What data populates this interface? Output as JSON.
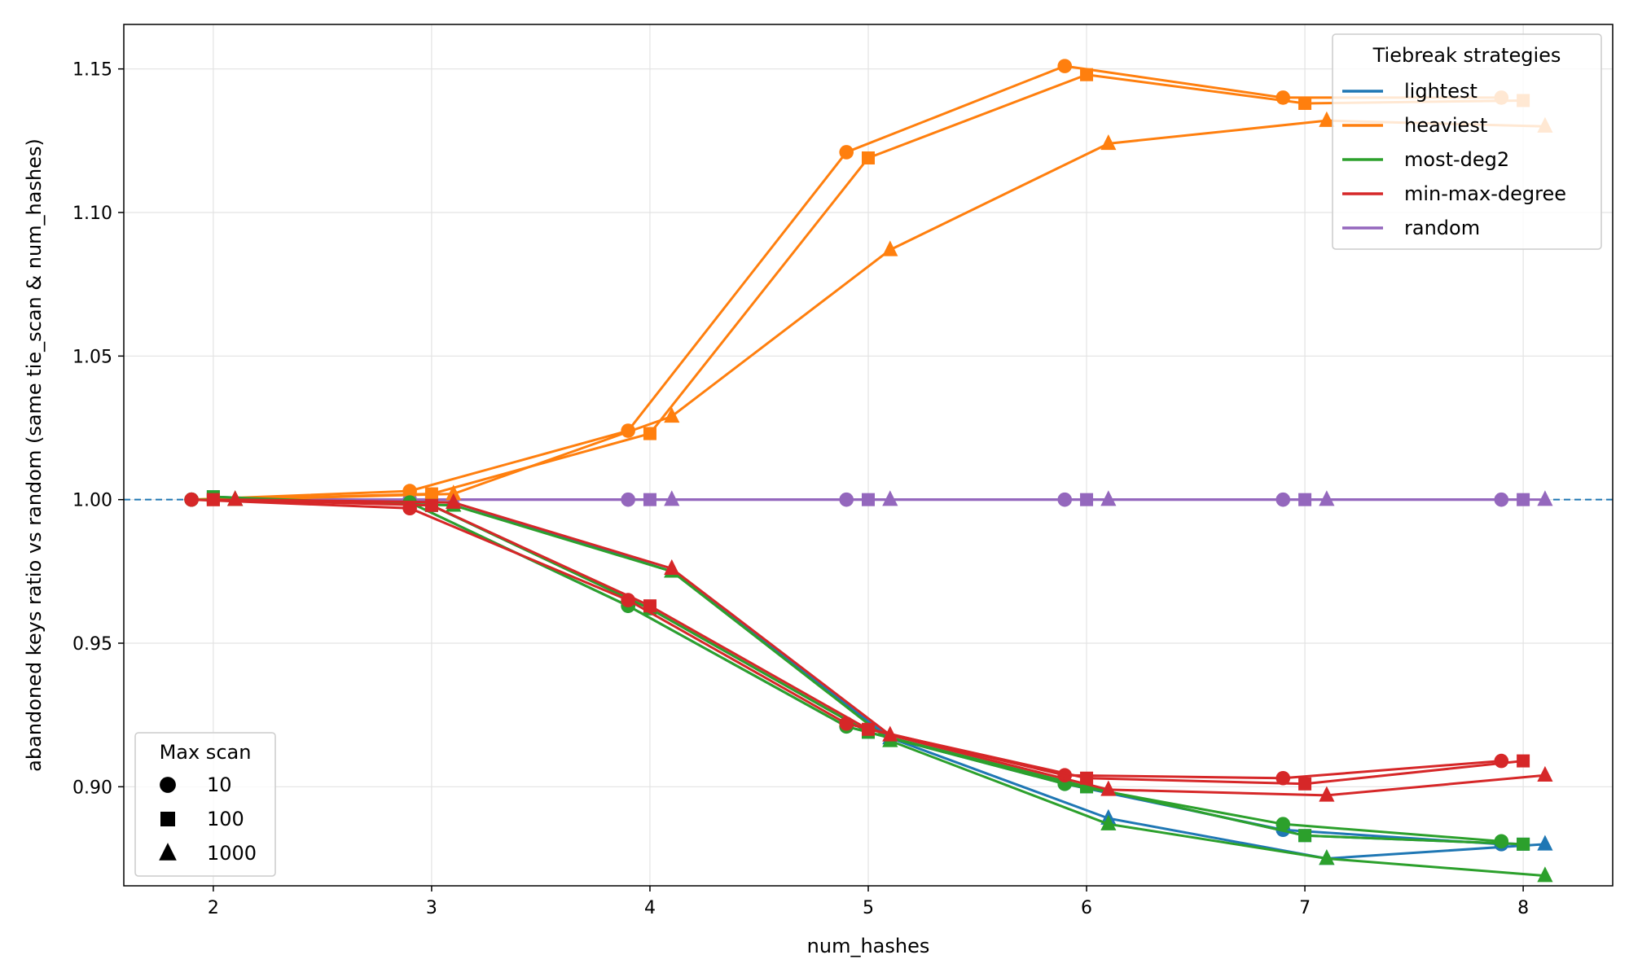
{
  "chart_data": {
    "type": "line",
    "title": "",
    "xlabel": "num_hashes",
    "ylabel": "abandoned keys ratio vs random (same tie_scan & num_hashes)",
    "xlim": [
      1.59,
      8.41
    ],
    "ylim": [
      0.8655,
      1.1655
    ],
    "x_ticks": [
      2,
      3,
      4,
      5,
      6,
      7,
      8
    ],
    "y_ticks": [
      0.9,
      0.95,
      1.0,
      1.05,
      1.1,
      1.15
    ],
    "y_tick_labels": [
      "0.90",
      "0.95",
      "1.00",
      "1.05",
      "1.10",
      "1.15"
    ],
    "grid": true,
    "reference_line": {
      "y": 1.0,
      "style": "dashed",
      "color": "#1f77b4"
    },
    "x": [
      2,
      3,
      4,
      5,
      6,
      7,
      8
    ],
    "max_scan_offsets": {
      "10": -0.1,
      "100": 0.0,
      "1000": 0.1
    },
    "strategy_legend": {
      "title": "Tiebreak strategies",
      "placement": "top-right",
      "entries": [
        {
          "label": "lightest",
          "color": "#1f77b4"
        },
        {
          "label": "heaviest",
          "color": "#ff7f0e"
        },
        {
          "label": "most-deg2",
          "color": "#2ca02c"
        },
        {
          "label": "min-max-degree",
          "color": "#d62728"
        },
        {
          "label": "random",
          "color": "#9467bd"
        }
      ]
    },
    "scan_legend": {
      "title": "Max scan",
      "placement": "bottom-left",
      "entries": [
        {
          "label": "10",
          "marker": "circle"
        },
        {
          "label": "100",
          "marker": "square"
        },
        {
          "label": "1000",
          "marker": "triangle"
        }
      ]
    },
    "series": [
      {
        "strategy": "lightest",
        "max_scan": "10",
        "color": "#1f77b4",
        "marker": "circle",
        "values": [
          1.0,
          0.999,
          0.963,
          0.921,
          0.901,
          0.885,
          0.88
        ]
      },
      {
        "strategy": "lightest",
        "max_scan": "100",
        "color": "#1f77b4",
        "marker": "square",
        "values": [
          1.001,
          0.998,
          0.962,
          0.919,
          0.9,
          0.883,
          0.88
        ]
      },
      {
        "strategy": "lightest",
        "max_scan": "1000",
        "color": "#1f77b4",
        "marker": "triangle",
        "values": [
          1.0,
          0.999,
          0.975,
          0.917,
          0.889,
          0.875,
          0.88
        ]
      },
      {
        "strategy": "random",
        "max_scan": "10",
        "color": "#9467bd",
        "marker": "circle",
        "values": [
          1.0,
          1.0,
          1.0,
          1.0,
          1.0,
          1.0,
          1.0
        ]
      },
      {
        "strategy": "random",
        "max_scan": "100",
        "color": "#9467bd",
        "marker": "square",
        "values": [
          1.0,
          1.0,
          1.0,
          1.0,
          1.0,
          1.0,
          1.0
        ]
      },
      {
        "strategy": "random",
        "max_scan": "1000",
        "color": "#9467bd",
        "marker": "triangle",
        "values": [
          1.0,
          1.0,
          1.0,
          1.0,
          1.0,
          1.0,
          1.0
        ]
      },
      {
        "strategy": "heaviest",
        "max_scan": "10",
        "color": "#ff7f0e",
        "marker": "circle",
        "values": [
          1.0,
          1.003,
          1.024,
          1.121,
          1.151,
          1.14,
          1.14
        ]
      },
      {
        "strategy": "heaviest",
        "max_scan": "100",
        "color": "#ff7f0e",
        "marker": "square",
        "values": [
          1.0,
          1.002,
          1.023,
          1.119,
          1.148,
          1.138,
          1.139
        ]
      },
      {
        "strategy": "heaviest",
        "max_scan": "1000",
        "color": "#ff7f0e",
        "marker": "triangle",
        "values": [
          1.0,
          1.002,
          1.029,
          1.087,
          1.124,
          1.132,
          1.13
        ]
      },
      {
        "strategy": "most-deg2",
        "max_scan": "10",
        "color": "#2ca02c",
        "marker": "circle",
        "values": [
          1.0,
          0.999,
          0.963,
          0.921,
          0.901,
          0.887,
          0.881
        ]
      },
      {
        "strategy": "most-deg2",
        "max_scan": "100",
        "color": "#2ca02c",
        "marker": "square",
        "values": [
          1.001,
          0.998,
          0.962,
          0.919,
          0.9,
          0.883,
          0.88
        ]
      },
      {
        "strategy": "most-deg2",
        "max_scan": "1000",
        "color": "#2ca02c",
        "marker": "triangle",
        "values": [
          1.0,
          0.998,
          0.975,
          0.916,
          0.887,
          0.875,
          0.869
        ]
      },
      {
        "strategy": "min-max-degree",
        "max_scan": "10",
        "color": "#d62728",
        "marker": "circle",
        "values": [
          1.0,
          0.997,
          0.965,
          0.922,
          0.904,
          0.903,
          0.909
        ]
      },
      {
        "strategy": "min-max-degree",
        "max_scan": "100",
        "color": "#d62728",
        "marker": "square",
        "values": [
          1.0,
          0.998,
          0.963,
          0.92,
          0.903,
          0.901,
          0.909
        ]
      },
      {
        "strategy": "min-max-degree",
        "max_scan": "1000",
        "color": "#d62728",
        "marker": "triangle",
        "values": [
          1.0,
          0.999,
          0.976,
          0.918,
          0.899,
          0.897,
          0.904
        ]
      }
    ]
  }
}
